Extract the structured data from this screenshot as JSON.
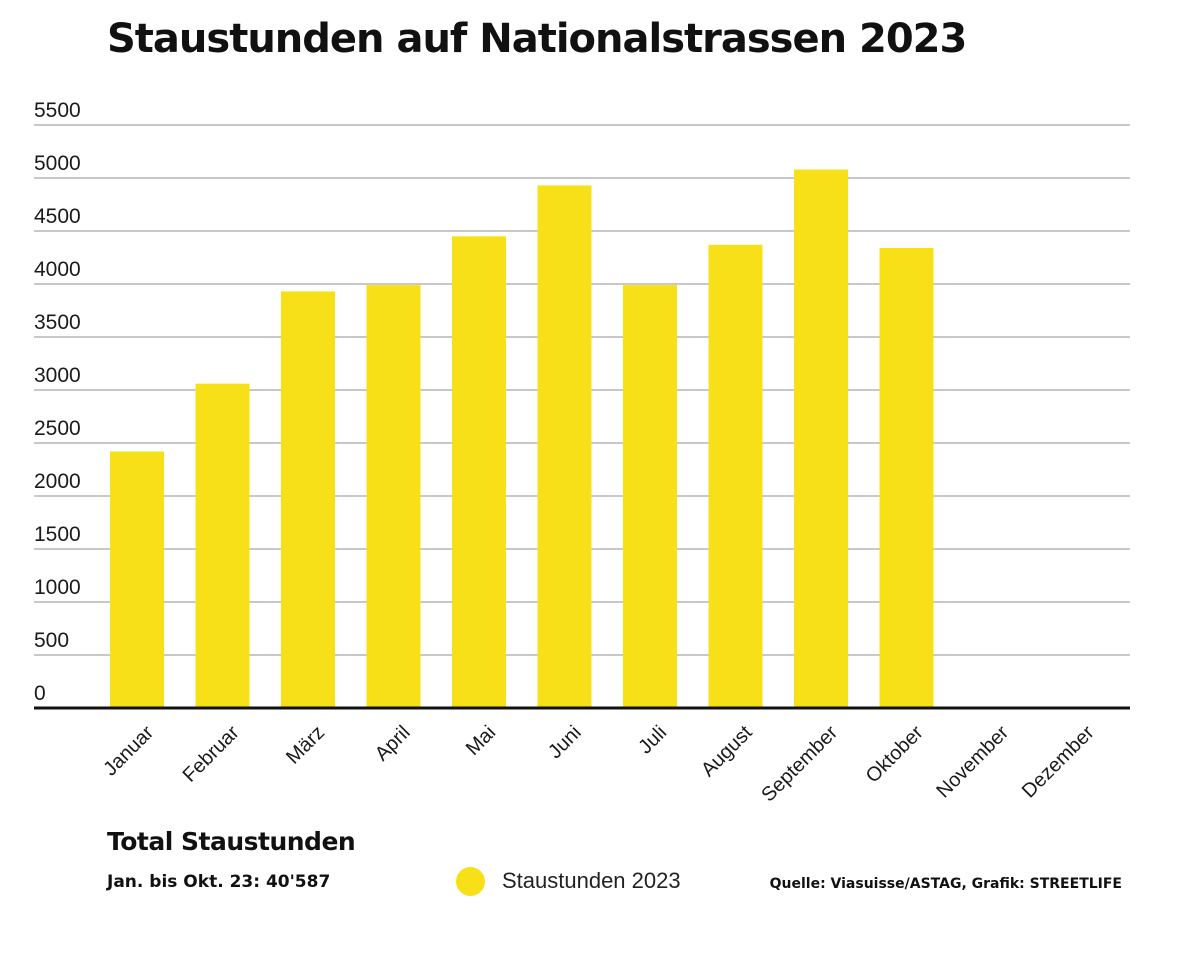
{
  "colors": {
    "bar": "#f7e017",
    "grid": "#b5b5b5",
    "axis": "#111111",
    "text": "#1a1a1a"
  },
  "chart_data": {
    "type": "bar",
    "title": "Staustunden auf Nationalstrassen 2023",
    "categories": [
      "Januar",
      "Februar",
      "März",
      "April",
      "Mai",
      "Juni",
      "Juli",
      "August",
      "September",
      "Oktober",
      "November",
      "Dezember"
    ],
    "series": [
      {
        "name": "Staustunden 2023",
        "values": [
          2420,
          3060,
          3930,
          3990,
          4450,
          4930,
          3990,
          4370,
          5080,
          4340,
          null,
          null
        ]
      }
    ],
    "yticks": [
      0,
      500,
      1000,
      1500,
      2000,
      2500,
      3000,
      3500,
      4000,
      4500,
      5000,
      5500
    ],
    "ylim": [
      0,
      5500
    ],
    "xlabel": "",
    "ylabel": "",
    "grid": true,
    "legend": "bottom"
  },
  "summary": {
    "title": "Total Staustunden",
    "value": "Jan. bis Okt. 23: 40'587"
  },
  "legend": {
    "label": "Staustunden 2023"
  },
  "source": "Quelle: Viasuisse/ASTAG, Grafik: STREETLIFE"
}
